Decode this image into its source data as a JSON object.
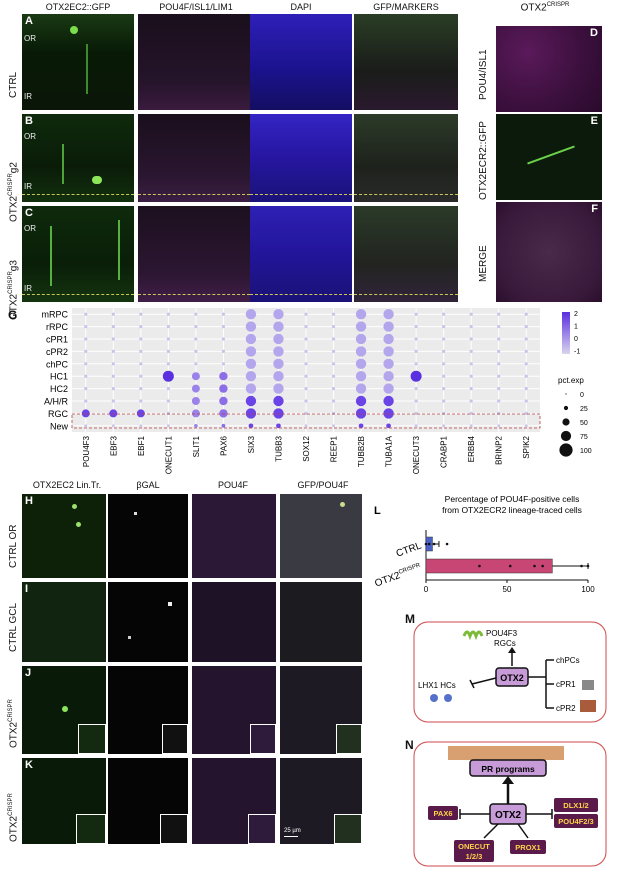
{
  "top": {
    "columns": [
      "OTX2EC2::GFP",
      "POU4F/ISL1/LIM1",
      "DAPI",
      "GFP/MARKERS"
    ],
    "right_header": "OTX2",
    "right_header_sup": "CRISPR",
    "rows": [
      {
        "letter": "A",
        "label": "CTRL",
        "label_sup": "",
        "label_suffix": ""
      },
      {
        "letter": "B",
        "label": "OTX2",
        "label_sup": "CRISPR",
        "label_suffix": "g2"
      },
      {
        "letter": "C",
        "label": "OTX2",
        "label_sup": "CRISPR",
        "label_suffix": "g3"
      }
    ],
    "or_label": "OR",
    "ir_label": "IR",
    "side_panels": [
      {
        "letter": "D",
        "label": "POU4/ISL1"
      },
      {
        "letter": "E",
        "label": "OTX2ECR2::GFP"
      },
      {
        "letter": "F",
        "label": "MERGE"
      }
    ]
  },
  "panel_g": {
    "letter": "G",
    "rows": [
      "mRPC",
      "rRPC",
      "cPR1",
      "cPR2",
      "chPC",
      "HC1",
      "HC2",
      "A/H/R",
      "RGC",
      "New"
    ],
    "genes": [
      "POU4F3",
      "EBF3",
      "EBF1",
      "ONECUT1",
      "SLIT1",
      "PAX6",
      "SIX3",
      "TUBB3",
      "SOX12",
      "REEP1",
      "TUBB2B",
      "TUBA1A",
      "ONECUT3",
      "CRABP1",
      "ERBB4",
      "BRINP2",
      "SPIK2"
    ],
    "colorbar_ticks": [
      "2",
      "1",
      "0",
      "-1"
    ],
    "size_legend_title": "pct.exp",
    "size_legend_values": [
      "0",
      "25",
      "50",
      "75",
      "100"
    ],
    "colors": {
      "high": "#5a2fe0",
      "low": "#d9d4ee",
      "grid_bg": "#ebebeb"
    }
  },
  "lower": {
    "columns": [
      "OTX2EC2 Lin.Tr.",
      "βGAL",
      "POU4F",
      "GFP/POU4F"
    ],
    "rows": [
      {
        "letter": "H",
        "label": "CTRL OR",
        "label_sup": ""
      },
      {
        "letter": "I",
        "label": "CTRL GCL",
        "label_sup": ""
      },
      {
        "letter": "J",
        "label": "OTX2",
        "label_sup": "CRISPR"
      },
      {
        "letter": "K",
        "label": "OTX2",
        "label_sup": "CRISPR"
      }
    ],
    "scalebar": "25 µm"
  },
  "panel_l": {
    "letter": "L",
    "title_line1": "Percentage of POU4F-positive cells",
    "title_line2": "from OTX2ECR2 lineage-traced cells",
    "chart_data": {
      "type": "bar",
      "orientation": "horizontal",
      "categories": [
        "CTRL",
        "OTX2CRISPR"
      ],
      "category_labels": [
        {
          "text": "CTRL",
          "sup": ""
        },
        {
          "text": "OTX2",
          "sup": "CRISPR"
        }
      ],
      "values": [
        4,
        78
      ],
      "errors": [
        4,
        22
      ],
      "points": [
        [
          0,
          2,
          5,
          13
        ],
        [
          33,
          52,
          67,
          72,
          96,
          100
        ]
      ],
      "xlim": [
        0,
        100
      ],
      "xticks": [
        0,
        50,
        100
      ],
      "colors": [
        "#4a62c8",
        "#c84673"
      ]
    }
  },
  "panel_m": {
    "letter": "M",
    "center": "OTX2",
    "top_label1": "POU4F3",
    "top_label2": "RGCs",
    "left_label": "LHX1 HCs",
    "targets": [
      "chPCs",
      "cPR1",
      "cPR2"
    ]
  },
  "panel_n": {
    "letter": "N",
    "top": "PR programs",
    "center": "OTX2",
    "left": "PAX6",
    "right1": "DLX1/2",
    "right2": "POU4F2/3",
    "bottom1_line1": "ONECUT",
    "bottom1_line2": "1/2/3",
    "bottom2": "PROX1"
  }
}
